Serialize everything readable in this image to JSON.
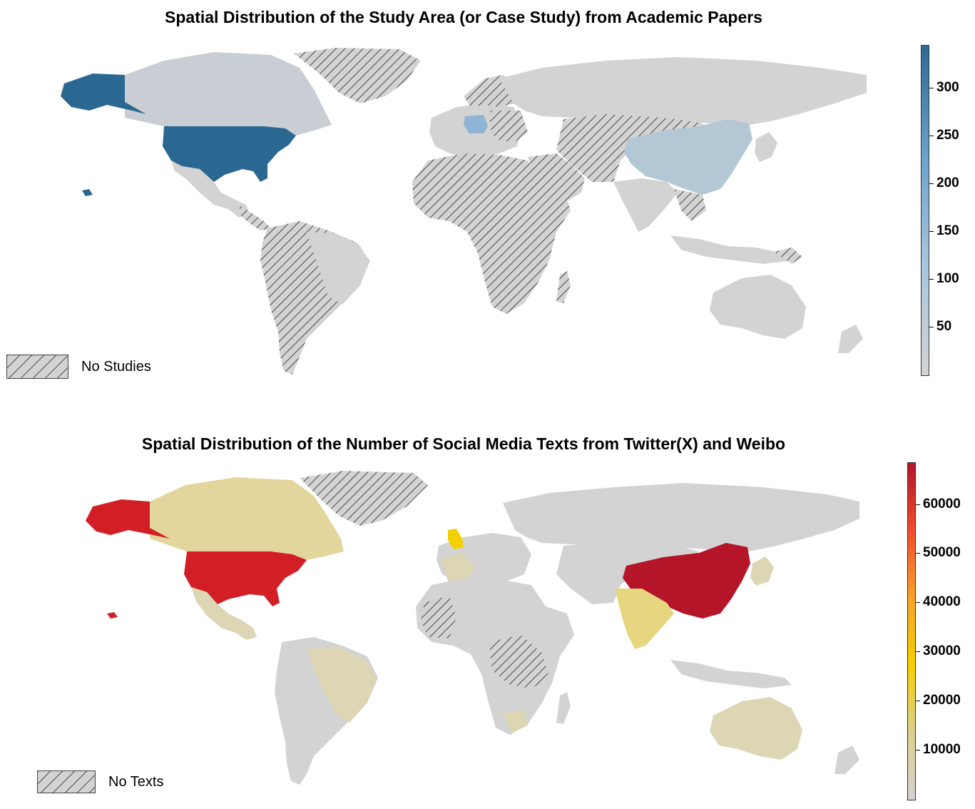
{
  "maps": [
    {
      "title": "Spatial Distribution of the Study Area (or Case Study) from Academic Papers",
      "legend_label": "No Studies",
      "colorbar": {
        "ticks": [
          "300",
          "250",
          "200",
          "150",
          "100",
          "50"
        ],
        "tick_values": [
          300,
          250,
          200,
          150,
          100,
          50
        ],
        "min": 0,
        "max": 345,
        "colors": [
          "#d3d3d3",
          "#a9c6dc",
          "#6aa2cc",
          "#2d6a96"
        ]
      },
      "colors": {
        "low": "#d3d3d3",
        "light": "#c8ced3",
        "china": "#b3c7d4",
        "germany": "#8fb4d4",
        "high": "#2b6891",
        "hatch": "#222222"
      },
      "highlighted_countries": [
        "United States",
        "Canada",
        "China",
        "Germany"
      ]
    },
    {
      "title": "Spatial Distribution of the Number of Social Media Texts from Twitter(X) and Weibo",
      "legend_label": "No Texts",
      "colorbar": {
        "ticks": [
          "60000",
          "50000",
          "40000",
          "30000",
          "20000",
          "10000"
        ],
        "tick_values": [
          60000,
          50000,
          40000,
          30000,
          20000,
          10000
        ],
        "min": 0,
        "max": 68500,
        "colors": [
          "#d3d3d3",
          "#dccf8e",
          "#f5d000",
          "#f7a12a",
          "#f24a2a",
          "#b3162b"
        ]
      },
      "colors": {
        "low": "#d3d3d3",
        "tan": "#dcd6b4",
        "canada": "#e2d69c",
        "india": "#e6d680",
        "uk": "#f5d000",
        "usa": "#d21f26",
        "china": "#b41528",
        "hatch": "#222222"
      },
      "highlighted_countries": [
        "United States",
        "China",
        "India",
        "United Kingdom",
        "Canada",
        "Australia",
        "Brazil"
      ]
    }
  ]
}
